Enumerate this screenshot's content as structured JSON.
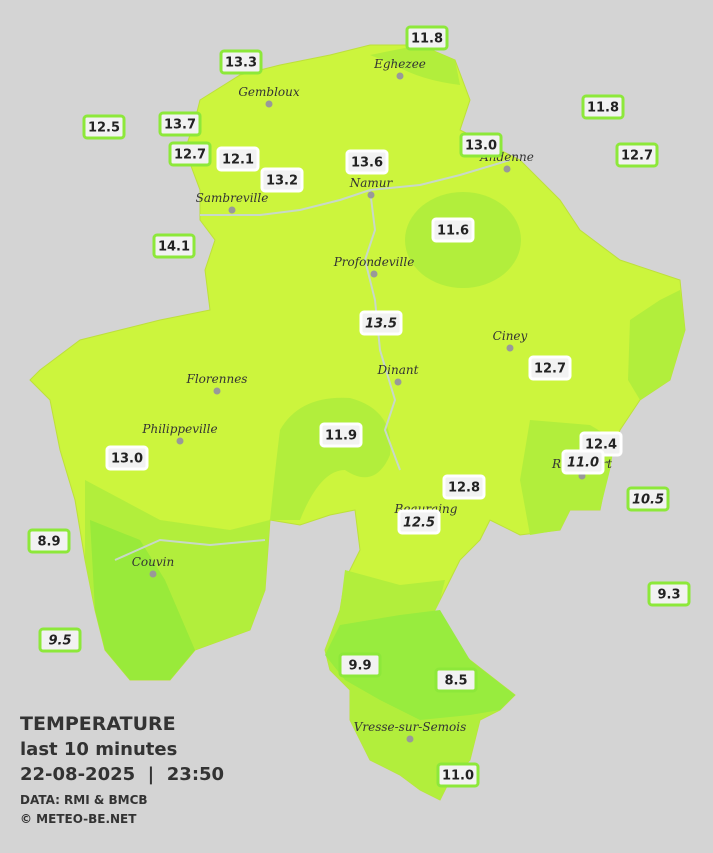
{
  "legend": {
    "title": "TEMPERATURE",
    "period": "last 10 minutes",
    "datetime": "22-08-2025  |  23:50",
    "source": "DATA: RMI & BMCB",
    "credit": "© METEO-BE.NET"
  },
  "towns": [
    "Eghezee",
    "Gembloux",
    "Andenne",
    "Namur",
    "Sambreville",
    "Profondeville",
    "Ciney",
    "Dinant",
    "Florennes",
    "Philippeville",
    "Rochefort",
    "Beauraing",
    "Couvin",
    "Vresse-sur-Semois"
  ],
  "stations": [
    "13.3",
    "11.8",
    "11.8",
    "12.5",
    "13.7",
    "12.7",
    "12.1",
    "13.2",
    "13.6",
    "13.0",
    "12.7",
    "14.1",
    "11.6",
    "13.5",
    "12.7",
    "11.9",
    "13.0",
    "12.4",
    "11.0",
    "10.5",
    "12.8",
    "12.5",
    "8.9",
    "9.3",
    "9.5",
    "9.9",
    "8.5",
    "11.0"
  ]
}
